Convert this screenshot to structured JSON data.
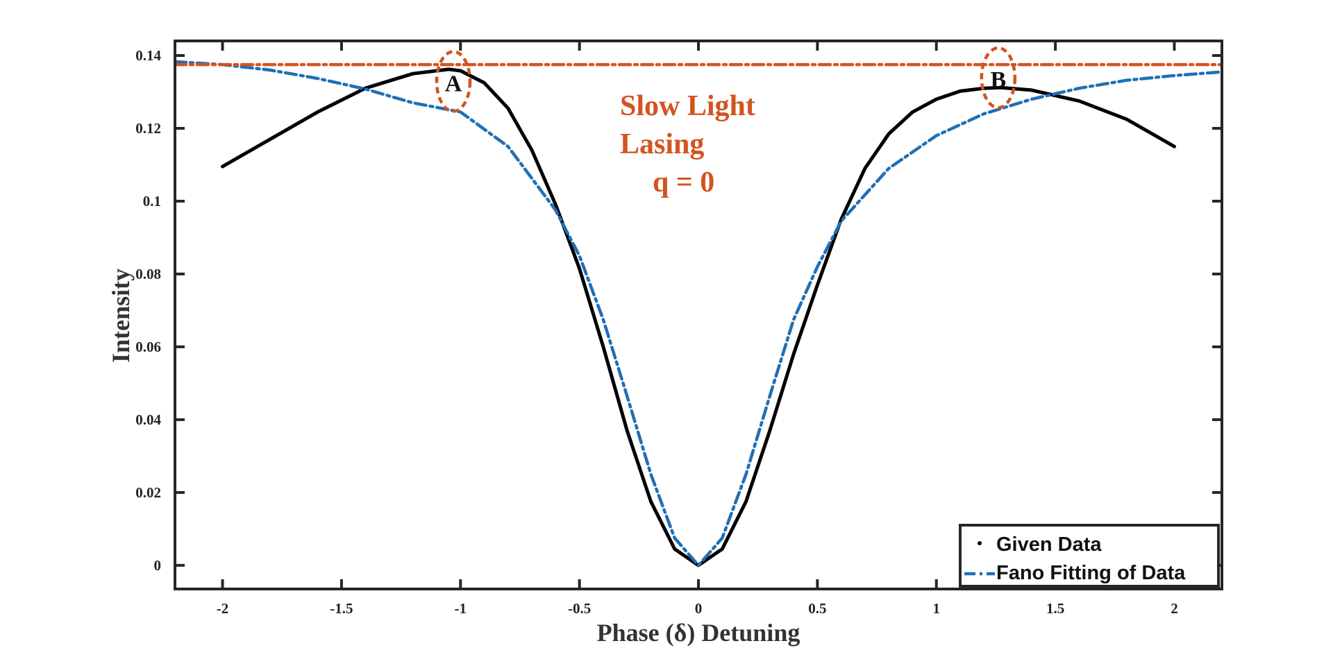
{
  "chart_data": {
    "type": "line",
    "xlabel": "Phase (δ) Detuning",
    "ylabel": "Intensity",
    "xlim": [
      -2.2,
      2.2
    ],
    "ylim": [
      -0.0065,
      0.144
    ],
    "xticks": [
      -2,
      -1.5,
      -1,
      -0.5,
      0,
      0.5,
      1,
      1.5,
      2
    ],
    "xtick_labels": [
      "-2",
      "-1.5",
      "-1",
      "-0.5",
      "0",
      "0.5",
      "1",
      "1.5",
      "2"
    ],
    "yticks": [
      0,
      0.02,
      0.04,
      0.06,
      0.08,
      0.1,
      0.12,
      0.14
    ],
    "ytick_labels": [
      "0",
      "0.02",
      "0.04",
      "0.06",
      "0.08",
      "0.1",
      "0.12",
      "0.14"
    ],
    "grid": false,
    "legend_position": "bottom-right",
    "series": [
      {
        "name": "Given Data",
        "style": "solid",
        "color": "#000000",
        "x": [
          -2,
          -1.8,
          -1.6,
          -1.4,
          -1.2,
          -1.05,
          -1.0,
          -0.9,
          -0.8,
          -0.7,
          -0.6,
          -0.5,
          -0.4,
          -0.3,
          -0.2,
          -0.1,
          0,
          0.1,
          0.2,
          0.3,
          0.4,
          0.5,
          0.6,
          0.7,
          0.8,
          0.9,
          1.0,
          1.1,
          1.2,
          1.27,
          1.4,
          1.6,
          1.8,
          2.0
        ],
        "y": [
          0.1095,
          0.117,
          0.1245,
          0.131,
          0.135,
          0.1362,
          0.1358,
          0.1325,
          0.1255,
          0.114,
          0.099,
          0.0815,
          0.06,
          0.037,
          0.0175,
          0.0045,
          0.0,
          0.0045,
          0.0175,
          0.037,
          0.058,
          0.077,
          0.095,
          0.109,
          0.1185,
          0.1245,
          0.128,
          0.1302,
          0.131,
          0.1312,
          0.1305,
          0.1275,
          0.1225,
          0.115
        ]
      },
      {
        "name": "Fano Fitting of Data",
        "style": "dash-dot",
        "color": "#1f6fb5",
        "x": [
          -2.2,
          -2.0,
          -1.8,
          -1.6,
          -1.4,
          -1.2,
          -1.0,
          -0.8,
          -0.6,
          -0.5,
          -0.4,
          -0.3,
          -0.2,
          -0.1,
          0,
          0.1,
          0.2,
          0.3,
          0.4,
          0.5,
          0.6,
          0.8,
          1.0,
          1.2,
          1.4,
          1.6,
          1.8,
          2.0,
          2.2
        ],
        "y": [
          0.1383,
          0.1375,
          0.136,
          0.1337,
          0.1308,
          0.127,
          0.1245,
          0.115,
          0.0975,
          0.085,
          0.0675,
          0.0465,
          0.025,
          0.0075,
          0.0,
          0.0075,
          0.025,
          0.0465,
          0.0675,
          0.082,
          0.0945,
          0.109,
          0.118,
          0.124,
          0.128,
          0.131,
          0.1332,
          0.1345,
          0.1355
        ]
      },
      {
        "name": "",
        "style": "dash-dot",
        "color": "#d4531f",
        "x": [
          -2.2,
          2.2
        ],
        "y": [
          0.1375,
          0.1375
        ]
      }
    ],
    "annotations": [
      {
        "lines": [
          "Slow Light",
          "Lasing",
          "q = 0"
        ],
        "color": "#d4531f"
      }
    ],
    "point_labels": [
      {
        "text": "A",
        "x": -1.03,
        "y": 0.1325,
        "color": "#111111",
        "ring_color": "#d4531f"
      },
      {
        "text": "B",
        "x": 1.26,
        "y": 0.1335,
        "color": "#111111",
        "ring_color": "#d4531f"
      }
    ]
  }
}
